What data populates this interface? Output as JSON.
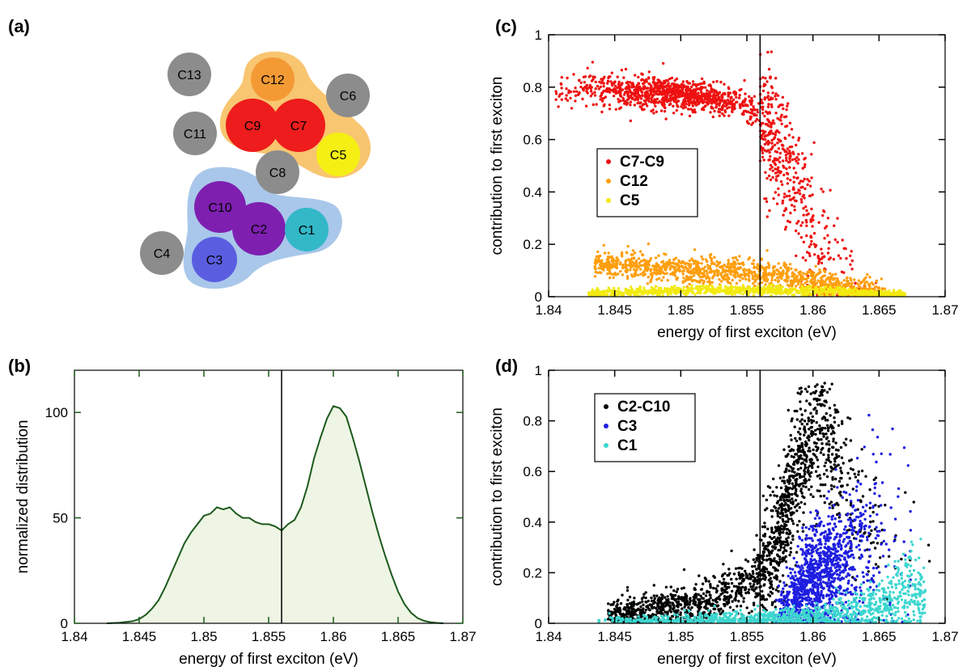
{
  "panels": {
    "a": {
      "label": "(a)",
      "chromophores": [
        {
          "name": "C13",
          "color": "#8c8c8c"
        },
        {
          "name": "C12",
          "color": "#f39a35"
        },
        {
          "name": "C6",
          "color": "#8c8c8c"
        },
        {
          "name": "C11",
          "color": "#8c8c8c"
        },
        {
          "name": "C9",
          "color": "#ee1c1c"
        },
        {
          "name": "C7",
          "color": "#ee1c1c"
        },
        {
          "name": "C5",
          "color": "#f5ef14"
        },
        {
          "name": "C8",
          "color": "#8c8c8c"
        },
        {
          "name": "C10",
          "color": "#7e1fb0"
        },
        {
          "name": "C2",
          "color": "#7e1fb0"
        },
        {
          "name": "C1",
          "color": "#33b8c8"
        },
        {
          "name": "C4",
          "color": "#8c8c8c"
        },
        {
          "name": "C3",
          "color": "#5a5de0"
        }
      ],
      "group_colors": {
        "upper": "#f8c570",
        "lower": "#a9c7ea"
      }
    },
    "b": {
      "label": "(b)"
    },
    "c": {
      "label": "(c)"
    },
    "d": {
      "label": "(d)"
    }
  },
  "chart_data": [
    {
      "panel": "(b)",
      "type": "area",
      "xlabel": "energy of first exciton (eV)",
      "ylabel": "normalized distribution",
      "xlim": [
        1.84,
        1.87
      ],
      "ylim": [
        0,
        120
      ],
      "xticks": [
        "1.84",
        "1.845",
        "1.85",
        "1.855",
        "1.86",
        "1.865",
        "1.87"
      ],
      "yticks": [
        "0",
        "50",
        "100"
      ],
      "vline": 1.856,
      "line_color": "#1c5a1c",
      "fill_color": "#eef5e4",
      "x": [
        1.8425,
        1.8435,
        1.8445,
        1.845,
        1.8455,
        1.846,
        1.8465,
        1.847,
        1.8475,
        1.848,
        1.8485,
        1.849,
        1.8495,
        1.85,
        1.8505,
        1.851,
        1.8515,
        1.852,
        1.8525,
        1.853,
        1.8535,
        1.854,
        1.8545,
        1.855,
        1.8555,
        1.856,
        1.8565,
        1.857,
        1.8575,
        1.858,
        1.8585,
        1.859,
        1.8595,
        1.86,
        1.8605,
        1.861,
        1.8615,
        1.862,
        1.8625,
        1.863,
        1.8635,
        1.864,
        1.8645,
        1.865,
        1.8655,
        1.866,
        1.8665,
        1.867,
        1.8675,
        1.868,
        1.8685
      ],
      "y": [
        0,
        0.3,
        1,
        2,
        4,
        7,
        11,
        17,
        24,
        31,
        38,
        43,
        47,
        51,
        52,
        55,
        54,
        55,
        52,
        50,
        50,
        48,
        47,
        47,
        46,
        44,
        47,
        49,
        55,
        65,
        78,
        88,
        97,
        103,
        102,
        98,
        88,
        77,
        65,
        53,
        42,
        32,
        23,
        15,
        9,
        5,
        2.5,
        1.2,
        0.5,
        0.2,
        0
      ]
    },
    {
      "panel": "(c)",
      "type": "scatter",
      "xlabel": "energy of first exciton (eV)",
      "ylabel": "contribution to first exciton",
      "xlim": [
        1.84,
        1.87
      ],
      "ylim": [
        0,
        1
      ],
      "xticks": [
        "1.84",
        "1.845",
        "1.85",
        "1.855",
        "1.86",
        "1.865",
        "1.87"
      ],
      "yticks": [
        "0",
        "0.2",
        "0.4",
        "0.6",
        "0.8",
        "1"
      ],
      "vline": 1.856,
      "legend_placement": "center-left",
      "series": [
        {
          "name": "C7-C9",
          "color": "#ee1111",
          "x": [
            1.843,
            1.8445,
            1.846,
            1.847,
            1.848,
            1.849,
            1.85,
            1.851,
            1.852,
            1.853,
            1.854,
            1.855,
            1.856,
            1.857,
            1.8575,
            1.858,
            1.8585,
            1.859,
            1.8595,
            1.86,
            1.8605,
            1.861,
            1.8615,
            1.862,
            1.863,
            1.864,
            1.865
          ],
          "y": [
            0.79,
            0.79,
            0.785,
            0.78,
            0.78,
            0.775,
            0.77,
            0.765,
            0.76,
            0.75,
            0.74,
            0.72,
            0.68,
            0.62,
            0.57,
            0.5,
            0.44,
            0.38,
            0.31,
            0.24,
            0.18,
            0.13,
            0.09,
            0.06,
            0.04,
            0.02,
            0.01
          ]
        },
        {
          "name": "C12",
          "color": "#ff9e0c",
          "x": [
            1.843,
            1.8445,
            1.846,
            1.847,
            1.848,
            1.849,
            1.85,
            1.851,
            1.852,
            1.853,
            1.854,
            1.855,
            1.856,
            1.857,
            1.858,
            1.859,
            1.86,
            1.861,
            1.862,
            1.863,
            1.864,
            1.865
          ],
          "y": [
            0.13,
            0.12,
            0.12,
            0.115,
            0.11,
            0.11,
            0.105,
            0.1,
            0.1,
            0.1,
            0.095,
            0.09,
            0.09,
            0.085,
            0.08,
            0.07,
            0.06,
            0.05,
            0.04,
            0.03,
            0.02,
            0.01
          ]
        },
        {
          "name": "C5",
          "color": "#f2ea10",
          "x": [
            1.843,
            1.845,
            1.847,
            1.849,
            1.851,
            1.853,
            1.855,
            1.857,
            1.859,
            1.861,
            1.863,
            1.865,
            1.867
          ],
          "y": [
            0.01,
            0.015,
            0.02,
            0.02,
            0.025,
            0.025,
            0.025,
            0.025,
            0.02,
            0.02,
            0.015,
            0.01,
            0.005
          ]
        }
      ]
    },
    {
      "panel": "(d)",
      "type": "scatter",
      "xlabel": "energy of first exciton (eV)",
      "ylabel": "contribution to first exciton",
      "xlim": [
        1.84,
        1.87
      ],
      "ylim": [
        0,
        1
      ],
      "xticks": [
        "1.84",
        "1.845",
        "1.85",
        "1.855",
        "1.86",
        "1.865",
        "1.87"
      ],
      "yticks": [
        "0",
        "0.2",
        "0.4",
        "0.6",
        "0.8",
        "1"
      ],
      "vline": 1.856,
      "legend_placement": "top-left",
      "series": [
        {
          "name": "C2-C10",
          "color": "#000000",
          "x": [
            1.844,
            1.846,
            1.848,
            1.85,
            1.851,
            1.852,
            1.853,
            1.854,
            1.855,
            1.856,
            1.857,
            1.8575,
            1.858,
            1.8585,
            1.859,
            1.8595,
            1.86,
            1.8605,
            1.861,
            1.862,
            1.863,
            1.864,
            1.865,
            1.866,
            1.867,
            1.868
          ],
          "y": [
            0.03,
            0.04,
            0.05,
            0.07,
            0.08,
            0.09,
            0.11,
            0.13,
            0.16,
            0.2,
            0.27,
            0.34,
            0.45,
            0.55,
            0.64,
            0.7,
            0.74,
            0.76,
            0.73,
            0.62,
            0.5,
            0.4,
            0.32,
            0.3,
            0.35,
            0.25
          ]
        },
        {
          "name": "C3",
          "color": "#1e1ee0",
          "x": [
            1.857,
            1.858,
            1.859,
            1.86,
            1.861,
            1.862,
            1.863,
            1.864,
            1.865,
            1.866,
            1.867,
            1.868
          ],
          "y": [
            0.03,
            0.06,
            0.12,
            0.18,
            0.2,
            0.24,
            0.28,
            0.33,
            0.38,
            0.42,
            0.38,
            0.3
          ]
        },
        {
          "name": "C1",
          "color": "#3dd6cf",
          "x": [
            1.843,
            1.846,
            1.849,
            1.852,
            1.855,
            1.858,
            1.861,
            1.863,
            1.865,
            1.866,
            1.867,
            1.868
          ],
          "y": [
            0.01,
            0.01,
            0.01,
            0.015,
            0.015,
            0.02,
            0.03,
            0.05,
            0.07,
            0.1,
            0.15,
            0.12
          ]
        }
      ]
    }
  ]
}
